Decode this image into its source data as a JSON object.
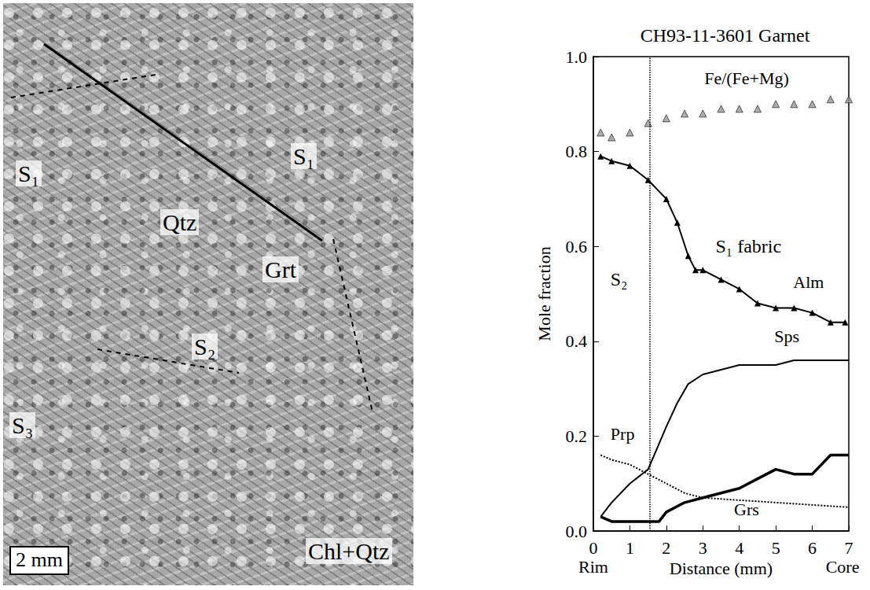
{
  "micrograph": {
    "labels": [
      "S₁",
      "S₁",
      "Qtz",
      "Grt",
      "S₂",
      "S₃",
      "Chl+Qtz"
    ],
    "scale_bar": "2 mm"
  },
  "chart_data": {
    "type": "line",
    "title": "CH93-11-3601 Garnet",
    "x_label": "Distance (mm)",
    "y_label": "Mole fraction",
    "x_end_labels": [
      "Rim",
      "Core"
    ],
    "xlim": [
      0,
      7
    ],
    "xticks": [
      0,
      1,
      2,
      3,
      4,
      5,
      6,
      7
    ],
    "ylim": [
      0,
      1
    ],
    "yticks": [
      {
        "value": 0,
        "label": "0.0"
      },
      0.2,
      0.4,
      0.6,
      0.8,
      {
        "value": 1,
        "label": "1.0"
      }
    ],
    "grid": false,
    "divider": 1.55,
    "annotations": [
      "S₂",
      "S₁ fabric"
    ],
    "series": [
      {
        "name": "Fe/(Fe+Mg)",
        "type": "scatter",
        "color": "#999999",
        "marker": "triangle",
        "line_style": "none",
        "x": [
          0.2,
          0.5,
          1.0,
          1.5,
          2.0,
          2.5,
          3.0,
          3.5,
          4.0,
          4.5,
          5.0,
          5.5,
          6.0,
          6.5,
          7.0
        ],
        "values": [
          0.84,
          0.83,
          0.84,
          0.86,
          0.87,
          0.88,
          0.88,
          0.89,
          0.89,
          0.89,
          0.9,
          0.9,
          0.9,
          0.91,
          0.91
        ]
      },
      {
        "name": "Alm",
        "type": "line",
        "color": "#000000",
        "marker": "triangle",
        "line_style": "solid",
        "x": [
          0.2,
          0.5,
          1.0,
          1.5,
          2.0,
          2.3,
          2.6,
          2.8,
          3.0,
          3.5,
          4.0,
          4.5,
          5.0,
          5.5,
          6.0,
          6.5,
          6.9
        ],
        "values": [
          0.79,
          0.78,
          0.77,
          0.74,
          0.7,
          0.65,
          0.58,
          0.55,
          0.55,
          0.53,
          0.51,
          0.48,
          0.47,
          0.47,
          0.46,
          0.44,
          0.44
        ]
      },
      {
        "name": "Sps",
        "type": "line",
        "color": "#000000",
        "marker": "none",
        "line_style": "solid",
        "x": [
          0.2,
          0.5,
          1.0,
          1.5,
          2.0,
          2.3,
          2.6,
          3.0,
          3.5,
          4.0,
          5.0,
          5.5,
          6.0,
          7.0
        ],
        "values": [
          0.03,
          0.06,
          0.1,
          0.13,
          0.22,
          0.27,
          0.31,
          0.33,
          0.34,
          0.35,
          0.35,
          0.36,
          0.36,
          0.36
        ]
      },
      {
        "name": "Prp",
        "type": "line",
        "color": "#000000",
        "marker": "none",
        "line_style": "dotted",
        "x": [
          0.2,
          0.5,
          1.0,
          1.5,
          2.0,
          2.5,
          3.0,
          4.0,
          5.0,
          6.0,
          7.0
        ],
        "values": [
          0.16,
          0.15,
          0.14,
          0.12,
          0.1,
          0.08,
          0.07,
          0.065,
          0.06,
          0.055,
          0.05
        ]
      },
      {
        "name": "Grs",
        "type": "line",
        "color": "#000000",
        "marker": "none",
        "line_style": "thick",
        "x": [
          0.2,
          0.5,
          1.0,
          1.5,
          1.8,
          2.0,
          2.5,
          3.0,
          3.5,
          4.0,
          4.5,
          5.0,
          5.5,
          6.0,
          6.5,
          7.0
        ],
        "values": [
          0.03,
          0.02,
          0.02,
          0.02,
          0.02,
          0.04,
          0.06,
          0.07,
          0.08,
          0.09,
          0.11,
          0.13,
          0.12,
          0.12,
          0.16,
          0.16
        ]
      }
    ]
  }
}
